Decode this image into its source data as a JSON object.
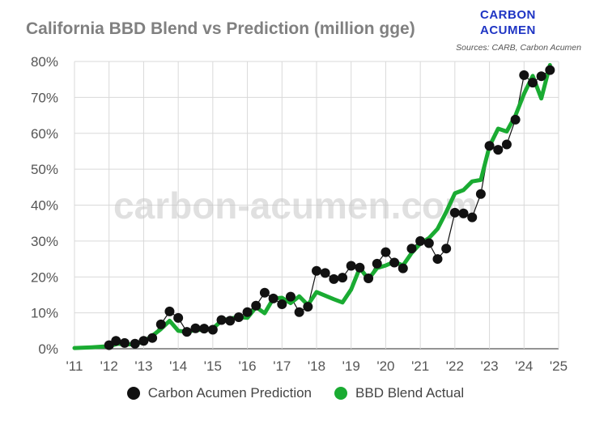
{
  "title": "California BBD Blend vs Prediction (million gge)",
  "logo": {
    "line1": "CARBON",
    "line2": "ACUMEN"
  },
  "sources": "Sources: CARB, Carbon Acumen",
  "watermark": "carbon-acumen.com",
  "colors": {
    "actual": "#1aab32",
    "prediction": "#111111",
    "grid": "#d9d9d9",
    "brand": "#1f35c4"
  },
  "chart_data": {
    "type": "line",
    "xlim": [
      2011,
      2025
    ],
    "ylim": [
      0,
      80
    ],
    "y_ticks": [
      0,
      10,
      20,
      30,
      40,
      50,
      60,
      70,
      80
    ],
    "y_tick_labels": [
      "0%",
      "10%",
      "20%",
      "30%",
      "40%",
      "50%",
      "60%",
      "70%",
      "80%"
    ],
    "x_ticks": [
      2011,
      2012,
      2013,
      2014,
      2015,
      2016,
      2017,
      2018,
      2019,
      2020,
      2021,
      2022,
      2023,
      2024,
      2025
    ],
    "x_tick_labels": [
      "'11",
      "'12",
      "'13",
      "'14",
      "'15",
      "'16",
      "'17",
      "'18",
      "'19",
      "'20",
      "'21",
      "'22",
      "'23",
      "'24",
      "'25"
    ],
    "grid": "vertical and horizontal",
    "legend_position": "bottom",
    "series": [
      {
        "name": "Carbon Acumen Prediction",
        "style": "line-with-markers",
        "points": [
          [
            2012.0,
            1.0
          ],
          [
            2012.2,
            2.2
          ],
          [
            2012.45,
            1.6
          ],
          [
            2012.75,
            1.4
          ],
          [
            2013.0,
            2.2
          ],
          [
            2013.25,
            3.0
          ],
          [
            2013.5,
            6.8
          ],
          [
            2013.75,
            10.4
          ],
          [
            2014.0,
            8.6
          ],
          [
            2014.25,
            4.7
          ],
          [
            2014.5,
            5.7
          ],
          [
            2014.75,
            5.6
          ],
          [
            2015.0,
            5.3
          ],
          [
            2015.25,
            8.0
          ],
          [
            2015.5,
            7.8
          ],
          [
            2015.75,
            8.8
          ],
          [
            2016.0,
            10.2
          ],
          [
            2016.25,
            12.0
          ],
          [
            2016.5,
            15.6
          ],
          [
            2016.75,
            14.0
          ],
          [
            2017.0,
            12.4
          ],
          [
            2017.25,
            14.5
          ],
          [
            2017.5,
            10.2
          ],
          [
            2017.75,
            11.7
          ],
          [
            2018.0,
            21.7
          ],
          [
            2018.25,
            21.1
          ],
          [
            2018.5,
            19.4
          ],
          [
            2018.75,
            19.8
          ],
          [
            2019.0,
            23.1
          ],
          [
            2019.25,
            22.6
          ],
          [
            2019.5,
            19.6
          ],
          [
            2019.75,
            23.7
          ],
          [
            2020.0,
            26.9
          ],
          [
            2020.25,
            24.0
          ],
          [
            2020.5,
            22.4
          ],
          [
            2020.75,
            27.9
          ],
          [
            2021.0,
            30.0
          ],
          [
            2021.25,
            29.4
          ],
          [
            2021.5,
            25.0
          ],
          [
            2021.75,
            27.9
          ],
          [
            2022.0,
            37.9
          ],
          [
            2022.25,
            37.7
          ],
          [
            2022.5,
            36.6
          ],
          [
            2022.75,
            43.1
          ],
          [
            2023.0,
            56.5
          ],
          [
            2023.25,
            55.4
          ],
          [
            2023.5,
            56.9
          ],
          [
            2023.75,
            63.8
          ],
          [
            2024.0,
            76.2
          ],
          [
            2024.25,
            74.1
          ],
          [
            2024.5,
            75.9
          ],
          [
            2024.75,
            77.6
          ]
        ]
      },
      {
        "name": "BBD Blend Actual",
        "style": "line",
        "points": [
          [
            2011.0,
            0.2
          ],
          [
            2011.5,
            0.4
          ],
          [
            2012.0,
            0.7
          ],
          [
            2012.25,
            1.4
          ],
          [
            2012.5,
            1.2
          ],
          [
            2012.75,
            1.3
          ],
          [
            2013.0,
            2.0
          ],
          [
            2013.25,
            3.6
          ],
          [
            2013.5,
            5.5
          ],
          [
            2013.75,
            7.8
          ],
          [
            2014.0,
            5.0
          ],
          [
            2014.25,
            4.7
          ],
          [
            2014.5,
            5.2
          ],
          [
            2014.75,
            5.3
          ],
          [
            2015.0,
            5.6
          ],
          [
            2015.25,
            7.8
          ],
          [
            2015.5,
            8.4
          ],
          [
            2015.75,
            8.8
          ],
          [
            2016.0,
            8.6
          ],
          [
            2016.25,
            11.6
          ],
          [
            2016.5,
            9.9
          ],
          [
            2016.75,
            14.0
          ],
          [
            2017.0,
            14.2
          ],
          [
            2017.25,
            12.7
          ],
          [
            2017.5,
            14.6
          ],
          [
            2017.75,
            12.2
          ],
          [
            2018.0,
            15.8
          ],
          [
            2018.5,
            13.8
          ],
          [
            2018.75,
            12.9
          ],
          [
            2019.0,
            16.5
          ],
          [
            2019.25,
            22.5
          ],
          [
            2019.5,
            19.4
          ],
          [
            2019.75,
            22.5
          ],
          [
            2020.0,
            23.2
          ],
          [
            2020.25,
            24.2
          ],
          [
            2020.5,
            23.2
          ],
          [
            2020.75,
            26.7
          ],
          [
            2021.0,
            29.3
          ],
          [
            2021.25,
            30.8
          ],
          [
            2021.5,
            33.4
          ],
          [
            2021.75,
            38.1
          ],
          [
            2022.0,
            43.3
          ],
          [
            2022.25,
            44.2
          ],
          [
            2022.5,
            46.6
          ],
          [
            2022.75,
            47.0
          ],
          [
            2023.0,
            56.4
          ],
          [
            2023.25,
            61.3
          ],
          [
            2023.5,
            60.5
          ],
          [
            2023.75,
            64.9
          ],
          [
            2024.0,
            71.0
          ],
          [
            2024.25,
            76.0
          ],
          [
            2024.5,
            69.7
          ],
          [
            2024.75,
            79.0
          ]
        ]
      }
    ]
  }
}
